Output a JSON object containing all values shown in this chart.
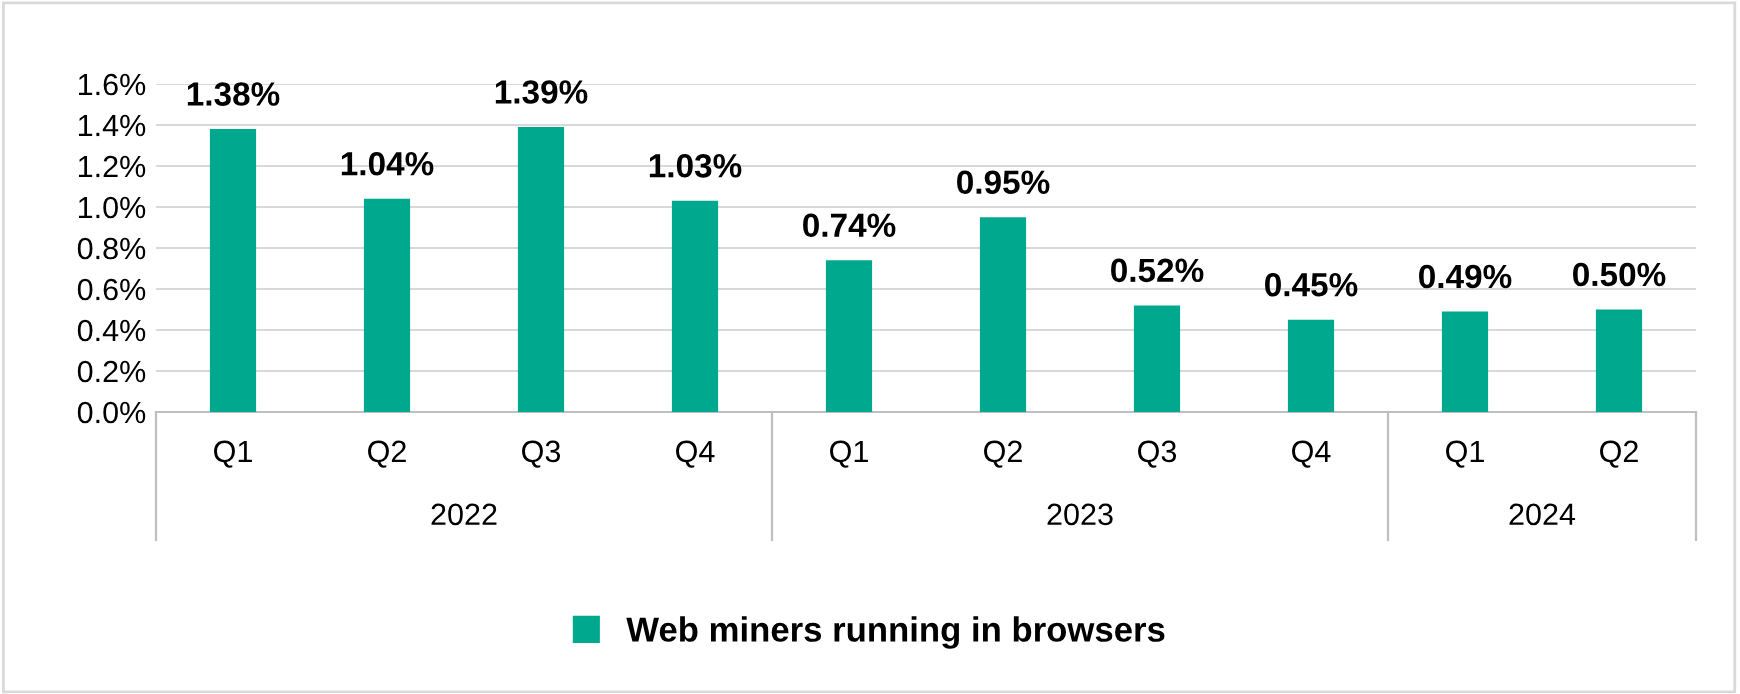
{
  "chart_data": {
    "type": "bar",
    "categories": [
      "Q1",
      "Q2",
      "Q3",
      "Q4",
      "Q1",
      "Q2",
      "Q3",
      "Q4",
      "Q1",
      "Q2"
    ],
    "series": [
      {
        "name": "Web miners running in browsers",
        "color": "#00a88e",
        "values": [
          1.38,
          1.04,
          1.39,
          1.03,
          0.74,
          0.95,
          0.52,
          0.45,
          0.49,
          0.5
        ],
        "value_labels": [
          "1.38%",
          "1.04%",
          "1.39%",
          "1.03%",
          "0.74%",
          "0.95%",
          "0.52%",
          "0.45%",
          "0.49%",
          "0.50%"
        ]
      }
    ],
    "annotations": [
      "2022",
      "2023",
      "2024"
    ],
    "ylim": [
      0,
      1.6
    ],
    "yticks": [
      {
        "value": 0,
        "label": "0.0%"
      },
      {
        "value": 0.2,
        "label": "0.2%"
      },
      {
        "value": 0.4,
        "label": "0.4%"
      },
      {
        "value": 0.6,
        "label": "0.6%"
      },
      {
        "value": 0.8,
        "label": "0.8%"
      },
      {
        "value": 1.0,
        "label": "1.0%"
      },
      {
        "value": 1.2,
        "label": "1.2%"
      },
      {
        "value": 1.4,
        "label": "1.4%"
      },
      {
        "value": 1.6,
        "label": "1.6%"
      }
    ],
    "grid": "y",
    "legend": "bottom"
  }
}
